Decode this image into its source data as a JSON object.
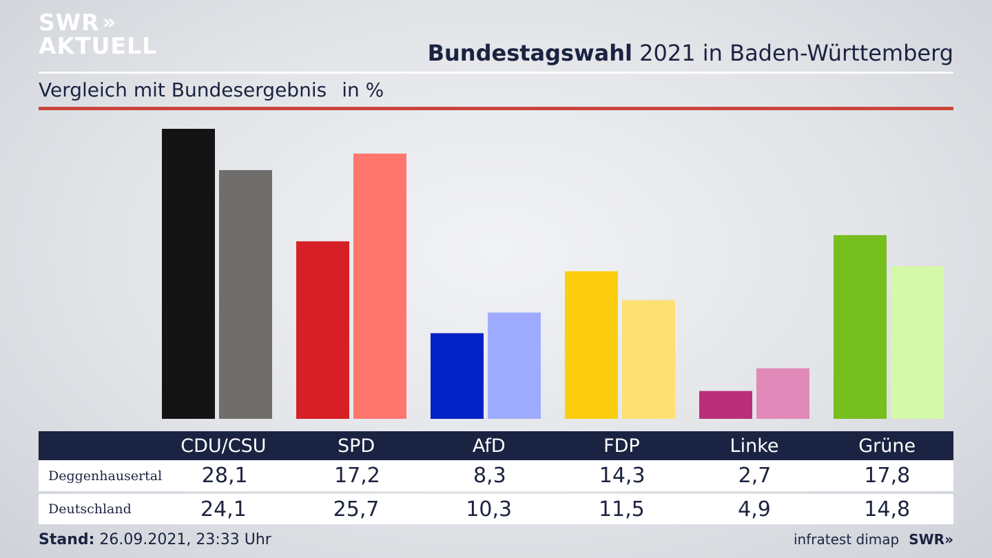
{
  "branding": {
    "logo_line1": "SWR",
    "logo_chevrons": "»",
    "logo_line2": "AKTUELL",
    "footer_source": "infratest dimap",
    "footer_logo": "SWR»"
  },
  "header": {
    "title_bold": "Bundestagswahl",
    "title_rest": " 2021 in Baden-Württemberg",
    "subtitle": "Vergleich mit Bundesergebnis",
    "unit": "in %"
  },
  "colors": {
    "table_header_bg": "#1a2342",
    "accent_rule": "#c9463d"
  },
  "chart_data": {
    "type": "bar",
    "title": "Bundestagswahl 2021 in Baden-Württemberg",
    "subtitle": "Vergleich mit Bundesergebnis",
    "ylabel": "in %",
    "categories": [
      "CDU/CSU",
      "SPD",
      "AfD",
      "FDP",
      "Linke",
      "Grüne"
    ],
    "series": [
      {
        "name": "Deggenhausertal",
        "values": [
          28.1,
          17.2,
          8.3,
          14.3,
          2.7,
          17.8
        ],
        "colors": [
          "#141414",
          "#d61f26",
          "#0022c6",
          "#fdcd10",
          "#bb2f78",
          "#77be1f"
        ]
      },
      {
        "name": "Deutschland",
        "values": [
          24.1,
          25.7,
          10.3,
          11.5,
          4.9,
          14.8
        ],
        "colors": [
          "#706e6c",
          "#ff766f",
          "#9eabfe",
          "#fde074",
          "#e189b9",
          "#d5f8ab"
        ]
      }
    ],
    "ylim": [
      0,
      28.1
    ],
    "grid": false,
    "legend": "table-below"
  },
  "table": {
    "columns": [
      "CDU/CSU",
      "SPD",
      "AfD",
      "FDP",
      "Linke",
      "Grüne"
    ],
    "rows": [
      {
        "label": "Deggenhausertal",
        "values": [
          "28,1",
          "17,2",
          "8,3",
          "14,3",
          "2,7",
          "17,8"
        ]
      },
      {
        "label": "Deutschland",
        "values": [
          "24,1",
          "25,7",
          "10,3",
          "11,5",
          "4,9",
          "14,8"
        ]
      }
    ]
  },
  "footer": {
    "stand_label": "Stand:",
    "stand_value": " 26.09.2021, 23:33 Uhr"
  }
}
